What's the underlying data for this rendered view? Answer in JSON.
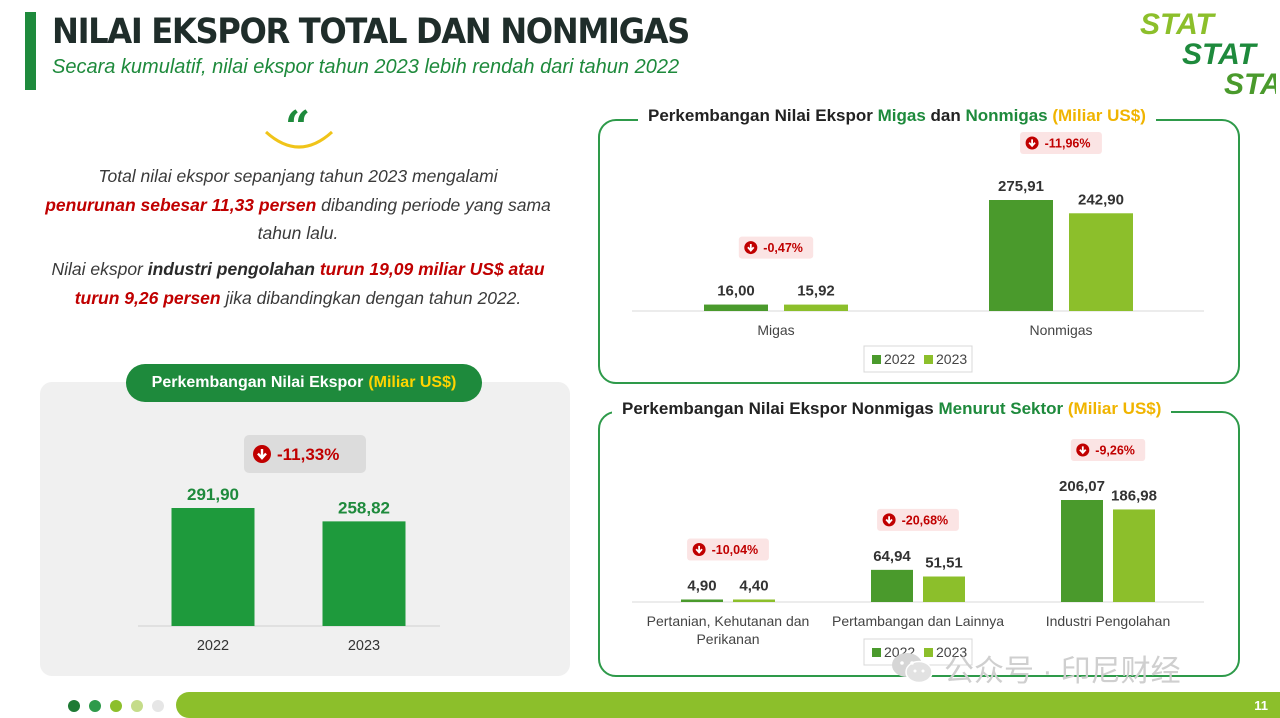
{
  "header": {
    "title": "NILAI EKSPOR TOTAL DAN NONMIGAS",
    "subtitle": "Secara kumulatif, nilai ekspor tahun 2023 lebih rendah dari tahun 2022"
  },
  "logo": {
    "text": "STAT",
    "icon": "bps-logo-icon"
  },
  "quote": {
    "icon": "quote-mark-icon",
    "mark": "“",
    "p1_a": "Total nilai ekspor sepanjang tahun 2023 mengalami",
    "p1_b": "penurunan sebesar 11,33 persen",
    "p1_c": " dibanding periode yang sama tahun lalu.",
    "p2_a": "Nilai ekspor ",
    "p2_b": "industri pengolahan",
    "p2_c": " ",
    "p2_d": "turun 19,09 miliar US$ atau turun 9,26 persen",
    "p2_e": " jika dibandingkan dengan tahun 2022."
  },
  "left_panel": {
    "title": "Perkembangan Nilai Ekspor",
    "unit": "(Miliar US$)"
  },
  "card1": {
    "title_a": "Perkembangan Nilai Ekspor ",
    "title_b": "Migas",
    "title_c": " dan ",
    "title_d": "Nonmigas",
    "title_e": " (Miliar US$)"
  },
  "card2": {
    "title_a": "Perkembangan Nilai Ekspor Nonmigas ",
    "title_b": "Menurut Sektor",
    "title_c": " (Miliar US$)"
  },
  "colors": {
    "series_2022": "#4a9a2c",
    "series_2023": "#8cbf2b",
    "total_bar": "#1e9a3c",
    "value_2023_total": "#1e8a3c",
    "badge_red": "#c00000",
    "badge_bg": "#fbe4e4",
    "accent_green": "#1e8a3c",
    "accent_yellow": "#f0b400"
  },
  "chart_data": [
    {
      "id": "total",
      "type": "bar",
      "categories": [
        "2022",
        "2023"
      ],
      "values": [
        291.9,
        258.82
      ],
      "labels": [
        "291,90",
        "258,82"
      ],
      "change": "-11,33%",
      "ylim": [
        0,
        300
      ]
    },
    {
      "id": "migas_nonmigas",
      "type": "bar",
      "categories": [
        "Migas",
        "Nonmigas"
      ],
      "series": [
        {
          "name": "2022",
          "values": [
            16.0,
            275.91
          ],
          "labels": [
            "16,00",
            "275,91"
          ]
        },
        {
          "name": "2023",
          "values": [
            15.92,
            242.9
          ],
          "labels": [
            "15,92",
            "242,90"
          ]
        }
      ],
      "changes": [
        "-0,47%",
        "-11,96%"
      ],
      "legend": "bottom",
      "ylim": [
        0,
        280
      ]
    },
    {
      "id": "sektor",
      "type": "bar",
      "categories": [
        "Pertanian, Kehutanan dan Perikanan",
        "Pertambangan dan Lainnya",
        "Industri Pengolahan"
      ],
      "series": [
        {
          "name": "2022",
          "values": [
            4.9,
            64.94,
            206.07
          ],
          "labels": [
            "4,90",
            "64,94",
            "206,07"
          ]
        },
        {
          "name": "2023",
          "values": [
            4.4,
            51.51,
            186.98
          ],
          "labels": [
            "4,40",
            "51,51",
            "186,98"
          ]
        }
      ],
      "changes": [
        "-10,04%",
        "-20,68%",
        "-9,26%"
      ],
      "legend": "bottom",
      "ylim": [
        0,
        210
      ]
    }
  ],
  "watermark": {
    "icon": "wechat-icon",
    "text": "公众号 · 印尼财经"
  },
  "footer": {
    "page_number": "11",
    "dot_colors": [
      "#1e7a34",
      "#2e9a4a",
      "#8cbf2b",
      "#c5dc8a",
      "#e6e6e6"
    ]
  }
}
